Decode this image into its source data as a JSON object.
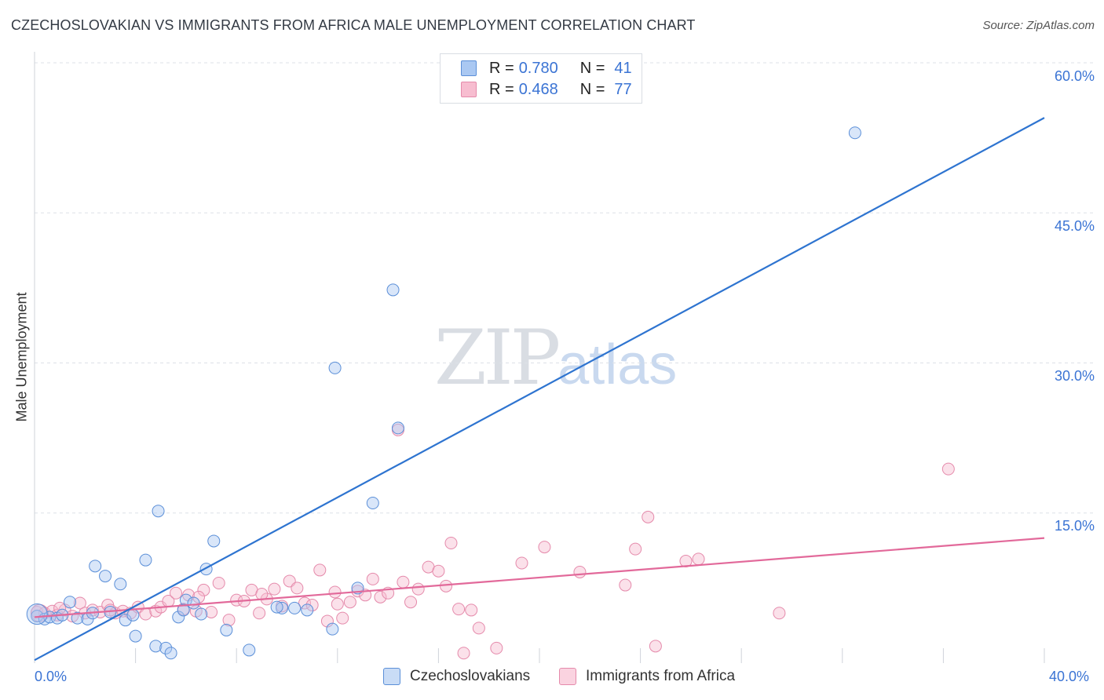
{
  "header": {
    "title": "CZECHOSLOVAKIAN VS IMMIGRANTS FROM AFRICA MALE UNEMPLOYMENT CORRELATION CHART",
    "source": "Source: ZipAtlas.com"
  },
  "watermark": {
    "zip": "ZIP",
    "atlas": "atlas"
  },
  "legend_top": {
    "rows": [
      {
        "r_label": "R =",
        "r_value": "0.780",
        "n_label": "N =",
        "n_value": "41",
        "color": "#aac8f2"
      },
      {
        "r_label": "R =",
        "r_value": "0.468",
        "n_label": "N =",
        "n_value": "77",
        "color": "#f7bdd0"
      }
    ]
  },
  "legend_bottom": {
    "items": [
      {
        "label": "Czechoslovakians",
        "color": "#aac8f2"
      },
      {
        "label": "Immigrants from Africa",
        "color": "#f7bdd0"
      }
    ]
  },
  "colors": {
    "blue_line": "#2e74d0",
    "pink_line": "#e2699a",
    "blue_fill": "rgba(170,200,242,0.45)",
    "blue_stroke": "#5b8fd8",
    "pink_fill": "rgba(247,189,208,0.45)",
    "pink_stroke": "#e58aab",
    "grid": "#dde1e7",
    "axis_text": "#3b74d4"
  },
  "chart_data": {
    "type": "scatter",
    "title": "CZECHOSLOVAKIAN VS IMMIGRANTS FROM AFRICA MALE UNEMPLOYMENT CORRELATION CHART",
    "xlabel": "",
    "ylabel": "Male Unemployment",
    "xlim": [
      0,
      40
    ],
    "ylim": [
      0,
      60
    ],
    "x_tick_labels": [
      "0.0%",
      "40.0%"
    ],
    "y_ticks": [
      15,
      30,
      45,
      60
    ],
    "y_tick_labels": [
      "15.0%",
      "30.0%",
      "45.0%",
      "60.0%"
    ],
    "grid": true,
    "legend": "top-center",
    "series": [
      {
        "name": "Czechoslovakians",
        "r": 0.78,
        "n": 41,
        "trend": {
          "x": [
            0,
            40
          ],
          "y": [
            0.3,
            54.5
          ]
        },
        "points": [
          [
            0.1,
            4.7
          ],
          [
            0.4,
            4.4
          ],
          [
            0.6,
            4.6
          ],
          [
            0.9,
            4.5
          ],
          [
            1.1,
            4.8
          ],
          [
            1.4,
            6.1
          ],
          [
            1.7,
            4.5
          ],
          [
            2.1,
            4.4
          ],
          [
            2.4,
            9.7
          ],
          [
            2.8,
            8.7
          ],
          [
            3.0,
            5.1
          ],
          [
            3.4,
            7.9
          ],
          [
            3.6,
            4.3
          ],
          [
            3.9,
            4.8
          ],
          [
            4.0,
            2.7
          ],
          [
            4.4,
            10.3
          ],
          [
            4.8,
            1.7
          ],
          [
            4.9,
            15.2
          ],
          [
            5.2,
            1.5
          ],
          [
            5.4,
            1.0
          ],
          [
            5.7,
            4.6
          ],
          [
            6.0,
            6.3
          ],
          [
            6.3,
            6.0
          ],
          [
            6.6,
            4.9
          ],
          [
            6.8,
            9.4
          ],
          [
            7.1,
            12.2
          ],
          [
            7.6,
            3.3
          ],
          [
            8.5,
            1.3
          ],
          [
            9.8,
            5.5
          ],
          [
            10.3,
            5.5
          ],
          [
            10.8,
            5.3
          ],
          [
            11.8,
            3.4
          ],
          [
            11.9,
            29.5
          ],
          [
            12.8,
            7.5
          ],
          [
            13.4,
            16.0
          ],
          [
            14.2,
            37.3
          ],
          [
            14.4,
            23.5
          ],
          [
            32.5,
            53.0
          ],
          [
            2.3,
            5.0
          ],
          [
            5.9,
            5.3
          ],
          [
            9.6,
            5.6
          ]
        ]
      },
      {
        "name": "Immigrants from Africa",
        "r": 0.468,
        "n": 77,
        "trend": {
          "x": [
            0,
            40
          ],
          "y": [
            4.6,
            12.5
          ]
        },
        "points": [
          [
            0.1,
            5.1
          ],
          [
            0.4,
            5.0
          ],
          [
            0.7,
            5.2
          ],
          [
            0.9,
            4.8
          ],
          [
            1.2,
            5.3
          ],
          [
            1.5,
            4.7
          ],
          [
            1.8,
            6.0
          ],
          [
            2.0,
            5.0
          ],
          [
            2.3,
            5.3
          ],
          [
            2.6,
            5.1
          ],
          [
            2.9,
            5.8
          ],
          [
            3.2,
            5.0
          ],
          [
            3.5,
            5.2
          ],
          [
            3.8,
            5.0
          ],
          [
            4.1,
            5.6
          ],
          [
            4.4,
            4.9
          ],
          [
            4.8,
            5.2
          ],
          [
            5.0,
            5.6
          ],
          [
            5.3,
            6.2
          ],
          [
            5.6,
            7.0
          ],
          [
            5.9,
            5.4
          ],
          [
            6.1,
            6.8
          ],
          [
            6.4,
            5.2
          ],
          [
            6.7,
            7.3
          ],
          [
            7.0,
            5.1
          ],
          [
            7.3,
            8.0
          ],
          [
            7.7,
            4.3
          ],
          [
            8.0,
            6.3
          ],
          [
            8.3,
            6.2
          ],
          [
            8.6,
            7.3
          ],
          [
            8.9,
            5.0
          ],
          [
            9.2,
            6.4
          ],
          [
            9.5,
            7.4
          ],
          [
            9.8,
            5.7
          ],
          [
            10.1,
            8.2
          ],
          [
            10.4,
            7.5
          ],
          [
            10.7,
            6.0
          ],
          [
            11.0,
            5.8
          ],
          [
            11.3,
            9.3
          ],
          [
            11.6,
            4.2
          ],
          [
            11.9,
            7.1
          ],
          [
            12.2,
            4.5
          ],
          [
            12.5,
            6.1
          ],
          [
            12.8,
            7.2
          ],
          [
            13.1,
            6.8
          ],
          [
            13.4,
            8.4
          ],
          [
            13.7,
            6.6
          ],
          [
            14.0,
            7.0
          ],
          [
            14.4,
            23.3
          ],
          [
            14.6,
            8.1
          ],
          [
            14.9,
            6.1
          ],
          [
            15.2,
            7.4
          ],
          [
            15.6,
            9.6
          ],
          [
            16.0,
            9.2
          ],
          [
            16.3,
            7.7
          ],
          [
            16.5,
            12.0
          ],
          [
            16.8,
            5.4
          ],
          [
            17.0,
            1.0
          ],
          [
            17.3,
            5.3
          ],
          [
            17.6,
            3.5
          ],
          [
            18.3,
            1.5
          ],
          [
            19.3,
            10.0
          ],
          [
            20.2,
            11.6
          ],
          [
            21.6,
            9.1
          ],
          [
            23.4,
            7.8
          ],
          [
            23.8,
            11.4
          ],
          [
            24.3,
            14.6
          ],
          [
            24.6,
            1.7
          ],
          [
            25.8,
            10.2
          ],
          [
            26.3,
            10.4
          ],
          [
            29.5,
            5.0
          ],
          [
            36.2,
            19.4
          ],
          [
            1.0,
            5.5
          ],
          [
            3.0,
            5.3
          ],
          [
            6.5,
            6.6
          ],
          [
            9.0,
            6.9
          ],
          [
            12.0,
            5.9
          ]
        ]
      }
    ]
  }
}
